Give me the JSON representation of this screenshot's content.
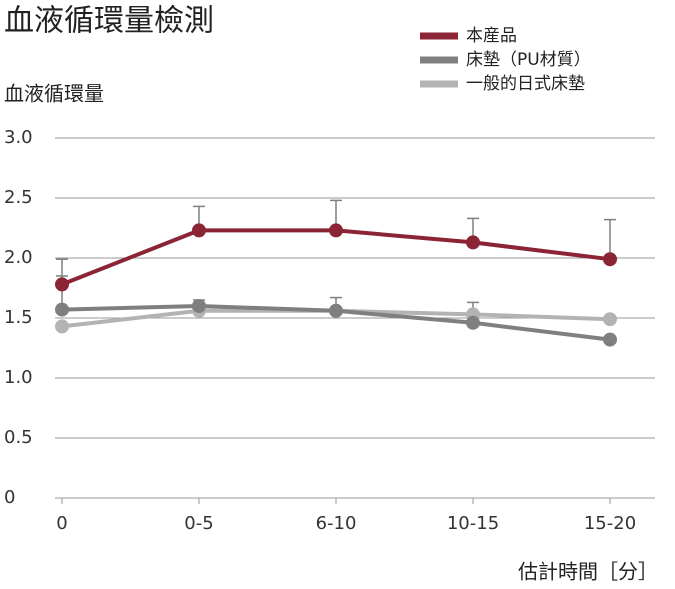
{
  "chart_data": {
    "type": "line",
    "title": "血液循環量檢測",
    "y_label": "血液循環量",
    "x_label": "估計時間［分］",
    "categories": [
      "0",
      "0-5",
      "6-10",
      "10-15",
      "15-20"
    ],
    "ylim": [
      0,
      3
    ],
    "yticks": [
      0,
      0.5,
      {
        "value": 1,
        "label": "1.0"
      },
      1.5,
      {
        "value": 2,
        "label": "2.0"
      },
      2.5,
      {
        "value": 3,
        "label": "3.0"
      }
    ],
    "grid": true,
    "legend": "top-right",
    "series": [
      {
        "name": "本産品",
        "color": "#8b2535",
        "values": [
          1.78,
          2.23,
          2.23,
          2.13,
          1.99
        ],
        "errors": [
          0.21,
          0.2,
          0.25,
          0.2,
          0.33
        ]
      },
      {
        "name": "床墊（PU材質）",
        "color": "#7f7f7f",
        "values": [
          1.57,
          1.6,
          1.56,
          1.46,
          1.32
        ],
        "errors": [
          0.28,
          0.05,
          0.11,
          0.17,
          null
        ]
      },
      {
        "name": "一般的日式床墊",
        "color": "#b3b3b3",
        "values": [
          1.43,
          1.56,
          1.56,
          1.53,
          1.49
        ]
      }
    ]
  }
}
